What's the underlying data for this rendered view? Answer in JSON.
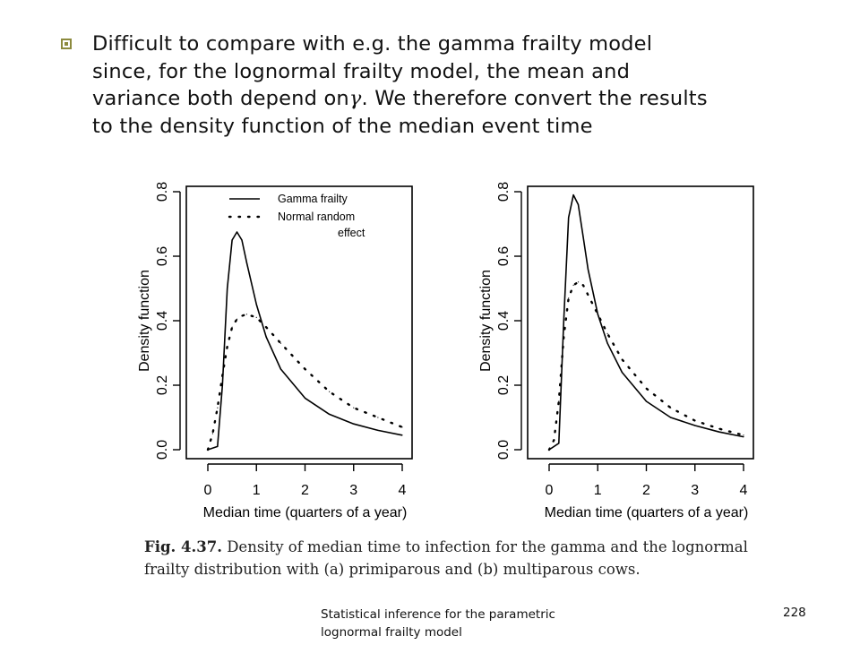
{
  "bullet": {
    "line1": "Difficult to compare with e.g. the gamma frailty model",
    "line2": "since, for the lognormal frailty model, the mean and",
    "line3_a": "variance both depend on",
    "gamma_symbol": "γ",
    "line3_b": ". We therefore convert the results",
    "line4": "to the density function of the median event time"
  },
  "chart_data": [
    {
      "type": "line",
      "xlabel": "Median time (quarters of a year)",
      "ylabel": "Density function",
      "xlim": [
        0,
        4
      ],
      "ylim": [
        0,
        0.8
      ],
      "x_ticks": [
        "0",
        "1",
        "2",
        "3",
        "4"
      ],
      "y_ticks": [
        "0.0",
        "0.2",
        "0.4",
        "0.6",
        "0.8"
      ],
      "legend": [
        "Gamma frailty",
        "Normal random",
        "effect"
      ],
      "legend_position": "top-right",
      "series": [
        {
          "name": "Gamma frailty",
          "style": "solid",
          "x": [
            0,
            0.2,
            0.3,
            0.4,
            0.5,
            0.6,
            0.7,
            0.8,
            1.0,
            1.2,
            1.5,
            2.0,
            2.5,
            3.0,
            3.5,
            4.0
          ],
          "y": [
            0,
            0.01,
            0.2,
            0.5,
            0.65,
            0.675,
            0.65,
            0.58,
            0.45,
            0.35,
            0.25,
            0.16,
            0.11,
            0.08,
            0.06,
            0.045
          ]
        },
        {
          "name": "Normal random effect",
          "style": "dotted",
          "x": [
            0,
            0.1,
            0.2,
            0.3,
            0.4,
            0.5,
            0.6,
            0.7,
            0.8,
            1.0,
            1.2,
            1.5,
            2.0,
            2.5,
            3.0,
            3.5,
            4.0
          ],
          "y": [
            0,
            0.05,
            0.13,
            0.23,
            0.32,
            0.38,
            0.405,
            0.415,
            0.42,
            0.41,
            0.38,
            0.33,
            0.25,
            0.18,
            0.13,
            0.1,
            0.07
          ]
        }
      ]
    },
    {
      "type": "line",
      "xlabel": "Median time (quarters of a year)",
      "ylabel": "Density function",
      "xlim": [
        0,
        4
      ],
      "ylim": [
        0,
        0.8
      ],
      "x_ticks": [
        "0",
        "1",
        "2",
        "3",
        "4"
      ],
      "y_ticks": [
        "0.0",
        "0.2",
        "0.4",
        "0.6",
        "0.8"
      ],
      "series": [
        {
          "style": "solid",
          "x": [
            0,
            0.2,
            0.3,
            0.4,
            0.5,
            0.6,
            0.7,
            0.8,
            1.0,
            1.2,
            1.5,
            2.0,
            2.5,
            3.0,
            3.5,
            4.0
          ],
          "y": [
            0,
            0.02,
            0.4,
            0.72,
            0.79,
            0.76,
            0.66,
            0.56,
            0.42,
            0.33,
            0.24,
            0.15,
            0.1,
            0.075,
            0.055,
            0.04
          ]
        },
        {
          "style": "dotted",
          "x": [
            0,
            0.1,
            0.2,
            0.3,
            0.4,
            0.5,
            0.6,
            0.7,
            0.8,
            1.0,
            1.2,
            1.5,
            2.0,
            2.5,
            3.0,
            3.5,
            4.0
          ],
          "y": [
            0,
            0.03,
            0.15,
            0.35,
            0.47,
            0.51,
            0.52,
            0.51,
            0.48,
            0.42,
            0.36,
            0.28,
            0.19,
            0.13,
            0.09,
            0.065,
            0.045
          ]
        }
      ]
    }
  ],
  "caption": {
    "label": "Fig. 4.37.",
    "text": "Density of median time to infection for the gamma and the lognormal frailty distribution with (a) primiparous and (b) multiparous cows."
  },
  "footer": {
    "title": "Statistical inference for the parametric lognormal frailty model",
    "page_number": "228"
  }
}
